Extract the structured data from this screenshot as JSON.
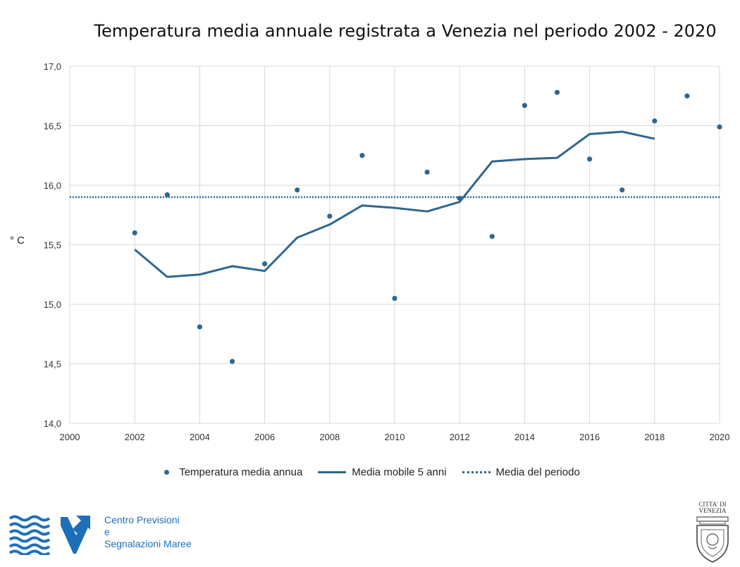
{
  "chart_data": {
    "type": "scatter",
    "title": "Temperatura media annuale registrata a Venezia nel periodo 2002 - 2020",
    "ylabel": "° C",
    "xlabel": "",
    "xlim": [
      2000,
      2020
    ],
    "ylim": [
      14.0,
      17.0
    ],
    "x_ticks": [
      "2000",
      "2002",
      "2004",
      "2006",
      "2008",
      "2010",
      "2012",
      "2014",
      "2016",
      "2018",
      "2020"
    ],
    "y_ticks": [
      "14,0",
      "14,5",
      "15,0",
      "15,5",
      "16,0",
      "16,5",
      "17,0"
    ],
    "grid": true,
    "legend_position": "bottom",
    "series": [
      {
        "name": "Temperatura media annua",
        "style": "points",
        "x": [
          2002,
          2003,
          2004,
          2005,
          2006,
          2007,
          2008,
          2009,
          2010,
          2011,
          2012,
          2013,
          2014,
          2015,
          2016,
          2017,
          2018,
          2019,
          2020
        ],
        "y": [
          15.6,
          15.92,
          14.81,
          14.52,
          15.34,
          15.96,
          15.74,
          16.25,
          15.05,
          16.11,
          15.89,
          15.57,
          16.67,
          16.78,
          16.22,
          15.96,
          16.54,
          16.75,
          16.49
        ]
      },
      {
        "name": "Media mobile 5 anni",
        "style": "line",
        "x": [
          2002,
          2003,
          2004,
          2005,
          2006,
          2007,
          2008,
          2009,
          2010,
          2011,
          2012,
          2013,
          2014,
          2015,
          2016,
          2017,
          2018
        ],
        "y": [
          15.46,
          15.23,
          15.25,
          15.32,
          15.28,
          15.56,
          15.67,
          15.83,
          15.81,
          15.78,
          15.86,
          16.2,
          16.22,
          16.23,
          16.43,
          16.45,
          16.39
        ]
      },
      {
        "name": "Media del periodo",
        "style": "dotted",
        "x": [
          2000,
          2020
        ],
        "y": [
          15.9,
          15.9
        ]
      }
    ],
    "color": "#2e6790"
  },
  "logos": {
    "cpsm": {
      "lines": [
        "Centro Previsioni",
        "e",
        "Segnalazioni Maree"
      ],
      "color": "#1d6fb8"
    },
    "venezia": {
      "lines": [
        "CITTA' DI",
        "VENEZIA"
      ]
    }
  }
}
